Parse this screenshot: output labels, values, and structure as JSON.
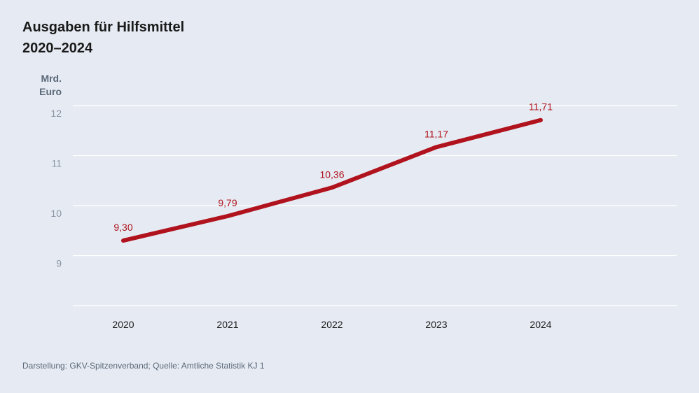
{
  "chart_data": {
    "type": "line",
    "title": "Ausgaben für Hilfsmittel",
    "subtitle": "2020–2024",
    "ylabel": [
      "Mrd.",
      "Euro"
    ],
    "xlabel": "",
    "categories": [
      "2020",
      "2021",
      "2022",
      "2023",
      "2024"
    ],
    "series": [
      {
        "name": "Ausgaben für Hilfsmittel",
        "values": [
          9.3,
          9.79,
          10.36,
          11.17,
          11.71
        ],
        "labels": [
          "9,30",
          "9,79",
          "10,36",
          "11,17",
          "11,71"
        ],
        "color": "#b0131d"
      }
    ],
    "ylim": [
      8,
      12
    ],
    "yticks": [
      9,
      10,
      11,
      12
    ],
    "ytick_labels": [
      "9",
      "10",
      "11",
      "12"
    ],
    "grid": true,
    "source": "Darstellung: GKV-Spitzenverband; Quelle: Amtliche Statistik KJ 1"
  },
  "colors": {
    "background": "#e6ebf3",
    "gridline": "#ffffff",
    "line": "#b0131d",
    "axis_text": "#8a94a3",
    "category_text": "#1a1a1a"
  }
}
